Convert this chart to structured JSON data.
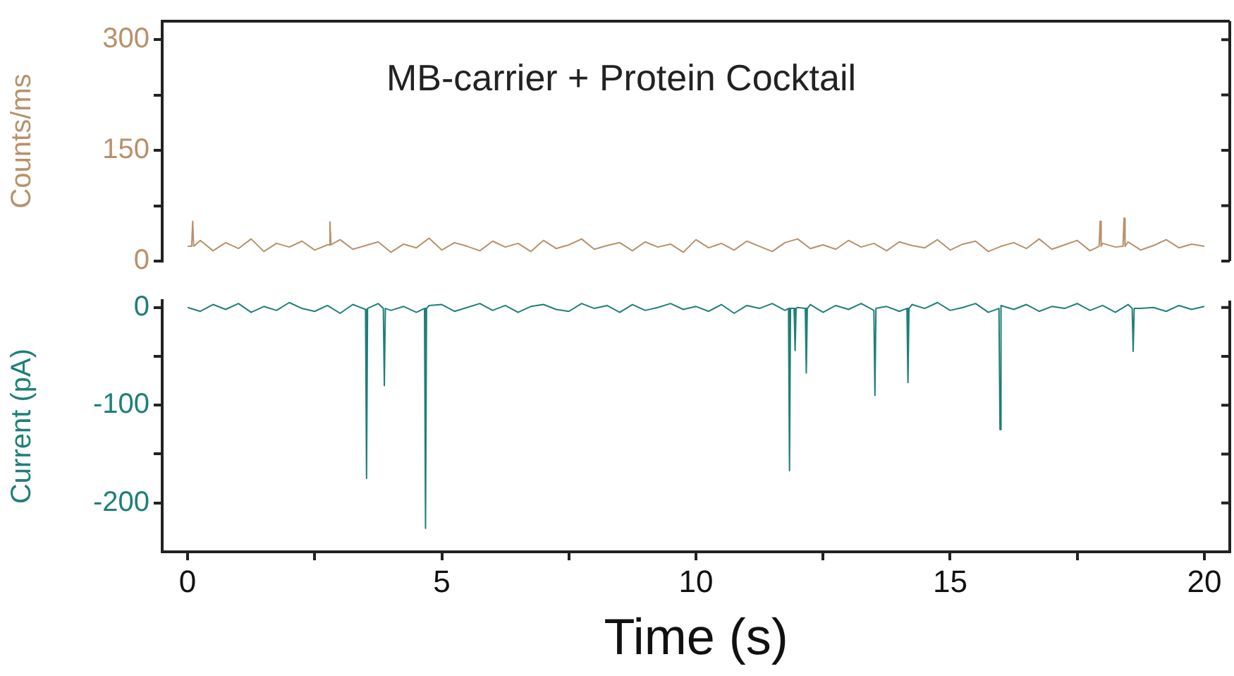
{
  "chart_data": [
    {
      "type": "line",
      "title": "MB-carrier + Protein Cocktail",
      "ylabel": "Counts/ms",
      "xlim": [
        -0.5,
        20.5
      ],
      "ylim": [
        0,
        325
      ],
      "yticks": [
        0,
        {
          "value": 75,
          "label": null
        },
        150,
        {
          "value": 225,
          "label": null
        },
        300
      ],
      "tick_labels": "y",
      "series": [
        {
          "color": "#b8916a",
          "x": [
            0,
            0.08,
            0.1,
            0.12,
            0.25,
            0.5,
            0.75,
            1,
            1.25,
            1.5,
            1.75,
            2,
            2.25,
            2.5,
            2.75,
            2.78,
            2.8,
            2.82,
            3,
            3.25,
            3.5,
            3.75,
            4,
            4.25,
            4.5,
            4.75,
            5,
            5.25,
            5.5,
            5.75,
            6,
            6.25,
            6.5,
            6.75,
            7,
            7.25,
            7.5,
            7.75,
            8,
            8.25,
            8.5,
            8.75,
            9,
            9.25,
            9.5,
            9.75,
            10,
            10.25,
            10.5,
            10.75,
            11,
            11.25,
            11.5,
            11.75,
            12,
            12.25,
            12.5,
            12.75,
            13,
            13.25,
            13.5,
            13.75,
            14,
            14.25,
            14.5,
            14.75,
            15,
            15.25,
            15.5,
            15.75,
            16,
            16.25,
            16.5,
            16.75,
            17,
            17.25,
            17.5,
            17.75,
            17.93,
            17.95,
            17.97,
            18,
            18.25,
            18.4,
            18.42,
            18.44,
            18.5,
            18.75,
            19,
            19.25,
            19.5,
            19.75,
            20
          ],
          "values": [
            20,
            20,
            54,
            20,
            28,
            14,
            25,
            17,
            30,
            13,
            24,
            19,
            27,
            15,
            22,
            22,
            53,
            22,
            29,
            16,
            21,
            26,
            12,
            23,
            18,
            31,
            15,
            25,
            20,
            14,
            27,
            19,
            24,
            13,
            28,
            17,
            22,
            30,
            16,
            21,
            25,
            14,
            26,
            19,
            23,
            12,
            29,
            18,
            24,
            15,
            27,
            20,
            13,
            25,
            30,
            17,
            22,
            16,
            28,
            19,
            24,
            14,
            26,
            21,
            18,
            29,
            15,
            23,
            27,
            13,
            20,
            25,
            17,
            30,
            16,
            22,
            28,
            14,
            20,
            54,
            20,
            24,
            19,
            20,
            58,
            20,
            26,
            15,
            21,
            29,
            18,
            23,
            20
          ]
        }
      ]
    },
    {
      "type": "line",
      "xlabel": "Time (s)",
      "ylabel": "Current (pA)",
      "xlim": [
        -0.5,
        20.5
      ],
      "ylim": [
        -250,
        7
      ],
      "xticks": [
        0,
        {
          "value": 2.5,
          "label": null
        },
        5,
        {
          "value": 7.5,
          "label": null
        },
        10,
        {
          "value": 12.5,
          "label": null
        },
        15,
        {
          "value": 17.5,
          "label": null
        },
        20
      ],
      "yticks": [
        0,
        {
          "value": -50,
          "label": null
        },
        -100,
        {
          "value": -150,
          "label": null
        },
        -200
      ],
      "series": [
        {
          "color": "#1f7f78",
          "x": [
            0,
            0.25,
            0.5,
            0.75,
            1,
            1.25,
            1.5,
            1.75,
            2,
            2.25,
            2.5,
            2.75,
            3,
            3.25,
            3.5,
            3.52,
            3.54,
            3.75,
            3.85,
            3.87,
            3.89,
            4,
            4.25,
            4.5,
            4.66,
            4.68,
            4.7,
            4.75,
            5,
            5.25,
            5.5,
            5.75,
            6,
            6.25,
            6.5,
            6.75,
            7,
            7.25,
            7.5,
            7.75,
            8,
            8.25,
            8.5,
            8.75,
            9,
            9.25,
            9.5,
            9.75,
            10,
            10.25,
            10.5,
            10.75,
            11,
            11.25,
            11.5,
            11.75,
            11.82,
            11.84,
            11.86,
            11.93,
            11.95,
            11.97,
            12,
            12.15,
            12.17,
            12.19,
            12.25,
            12.5,
            12.75,
            13,
            13.25,
            13.5,
            13.52,
            13.54,
            13.75,
            14,
            14.15,
            14.17,
            14.19,
            14.25,
            14.5,
            14.75,
            15,
            15.25,
            15.5,
            15.75,
            15.96,
            15.98,
            16,
            16.25,
            16.5,
            16.75,
            17,
            17.25,
            17.5,
            17.75,
            18,
            18.25,
            18.5,
            18.58,
            18.6,
            18.62,
            18.75,
            19,
            19.25,
            19.5,
            19.75,
            20
          ],
          "values": [
            0,
            -4,
            3,
            -2,
            4,
            -5,
            1,
            -3,
            5,
            -1,
            -4,
            2,
            -6,
            3,
            -2,
            -175,
            -1,
            4,
            -1,
            -80,
            -1,
            -3,
            1,
            -5,
            -1,
            -226,
            -1,
            2,
            3,
            -4,
            0,
            4,
            -3,
            2,
            -5,
            1,
            3,
            -2,
            -4,
            4,
            -1,
            2,
            -5,
            3,
            -3,
            0,
            4,
            -2,
            1,
            -4,
            3,
            -6,
            2,
            -1,
            4,
            -3,
            -1,
            -167,
            -1,
            -1,
            -44,
            -1,
            0,
            -1,
            -67,
            -1,
            3,
            -5,
            2,
            -2,
            4,
            -3,
            -90,
            -1,
            1,
            -4,
            -1,
            -77,
            -1,
            3,
            -1,
            5,
            -3,
            0,
            4,
            -5,
            -1,
            -125,
            2,
            -2,
            3,
            -4,
            1,
            -1,
            4,
            -3,
            2,
            -5,
            3,
            -1,
            -45,
            -1,
            -1,
            0,
            -4,
            2,
            -2,
            1
          ]
        }
      ]
    }
  ]
}
